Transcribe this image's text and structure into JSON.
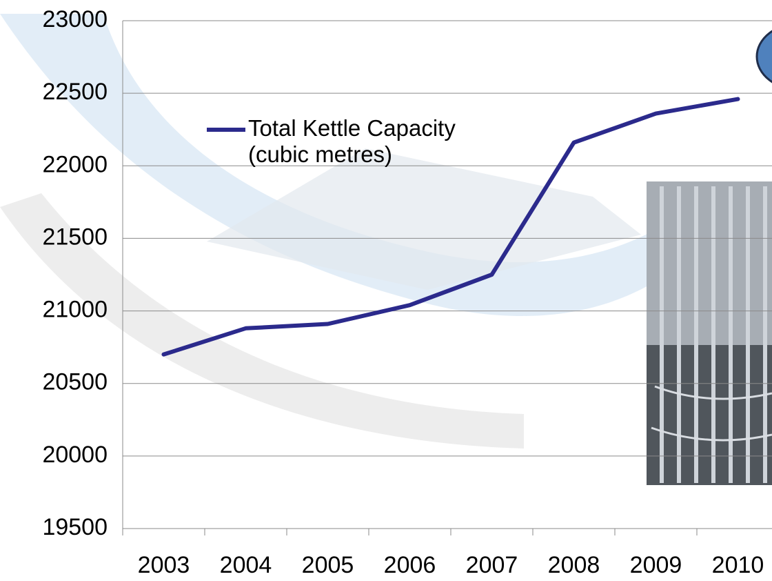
{
  "chart_data": {
    "type": "line",
    "categories": [
      "2003",
      "2004",
      "2005",
      "2006",
      "2007",
      "2008",
      "2009",
      "2010"
    ],
    "series": [
      {
        "name": "Total Kettle Capacity (cubic metres)",
        "color": "#2b2a8c",
        "values": [
          20700,
          20880,
          20910,
          21040,
          21250,
          22160,
          22360,
          22460
        ]
      }
    ],
    "ylim": [
      19500,
      23000
    ],
    "yticks": [
      19500,
      20000,
      20500,
      21000,
      21500,
      22000,
      22500,
      23000
    ],
    "grid": true
  }
}
